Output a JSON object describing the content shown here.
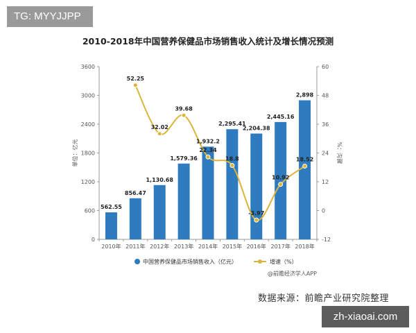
{
  "watermark_tag": "TG: MYYJJPP",
  "site_tag": "zh-xiaoai.com",
  "source": "数据来源：前瞻产业研究院整理",
  "colors": {
    "bar": "#2e7bbf",
    "line": "#d9b53b",
    "axis": "#999999"
  },
  "chart_data": {
    "type": "bar",
    "title": "2010-2018年中国营养保健品市场销售收入统计及增长情况预测",
    "categories": [
      "2010年",
      "2011年",
      "2012年",
      "2013年",
      "2014年",
      "2015年",
      "2016年",
      "2017年",
      "2018年"
    ],
    "series": [
      {
        "name": "中国营养保健品市场销售收入（亿元）",
        "type": "bar",
        "axis": "left",
        "values": [
          562.55,
          856.47,
          1130.68,
          1579.36,
          1932.2,
          2295.41,
          2204.38,
          2445.16,
          2898
        ],
        "labels": [
          "562.55",
          "856.47",
          "1,130.68",
          "1,579.36",
          "1,932.2",
          "2,295.41",
          "2,204.38",
          "2,445.16",
          "2,898"
        ]
      },
      {
        "name": "增速（%）",
        "type": "line",
        "axis": "right",
        "values": [
          null,
          52.25,
          32.02,
          39.68,
          22.34,
          18.8,
          -3.97,
          10.92,
          18.52
        ],
        "labels": [
          "",
          "52.25",
          "32.02",
          "39.68",
          "22.34",
          "18.8",
          "-3.97",
          "10.92",
          "18.52"
        ]
      }
    ],
    "ylabel_left": "单位：亿元",
    "ylabel_right": "%：沟骤",
    "ylim_left": [
      0,
      3600
    ],
    "yticks_left": [
      "0",
      "600",
      "1200",
      "1800",
      "2400",
      "3000",
      "3600"
    ],
    "ylim_right": [
      -12,
      60
    ],
    "yticks_right": [
      "-12",
      "0",
      "12",
      "24",
      "36",
      "48",
      "60"
    ],
    "legend_position": "bottom",
    "credit": "@前瞻经济学人APP",
    "grid": false
  }
}
